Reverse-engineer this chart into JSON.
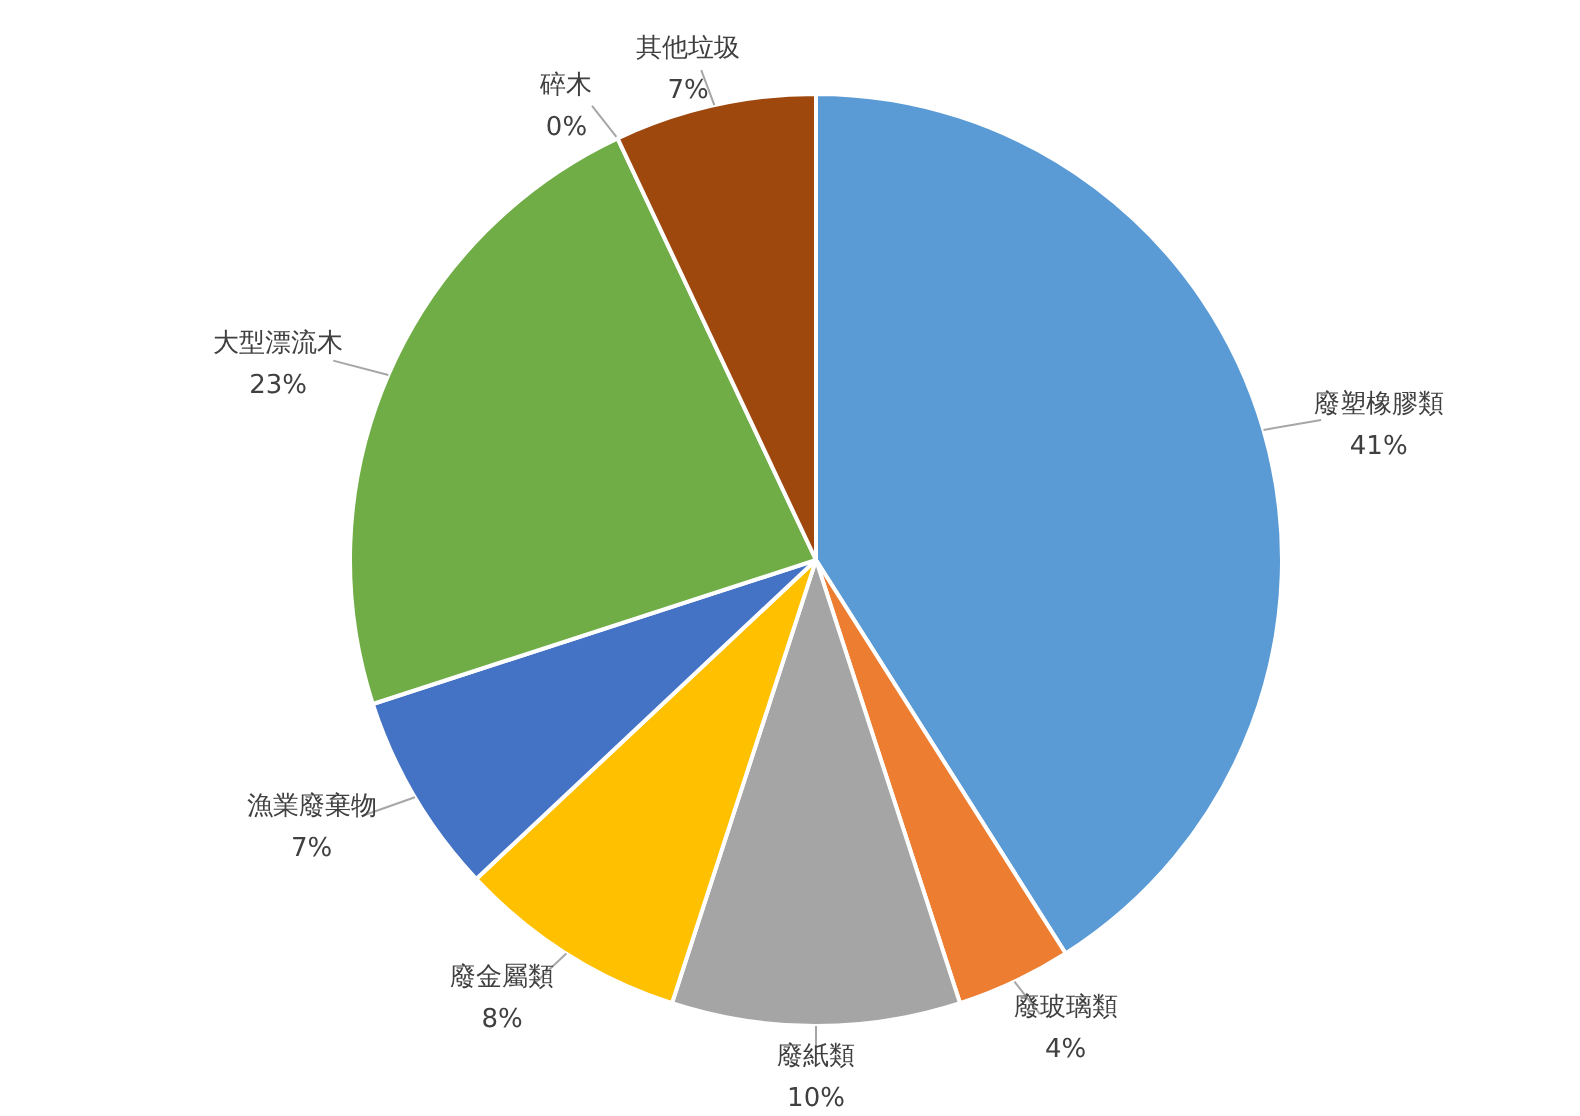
{
  "chart_data": {
    "type": "pie",
    "categories": [
      "廢塑橡膠類",
      "廢玻璃類",
      "廢紙類",
      "廢金屬類",
      "漁業廢棄物",
      "大型漂流木",
      "碎木",
      "其他垃圾"
    ],
    "values": [
      41,
      4,
      10,
      8,
      7,
      23,
      0,
      7
    ],
    "value_labels": [
      "41%",
      "4%",
      "10%",
      "8%",
      "7%",
      "23%",
      "0%",
      "7%"
    ],
    "colors": [
      "#5b9bd5",
      "#ed7d31",
      "#a5a5a5",
      "#ffc000",
      "#4472c4",
      "#70ad47",
      null,
      "#9e480e"
    ]
  }
}
